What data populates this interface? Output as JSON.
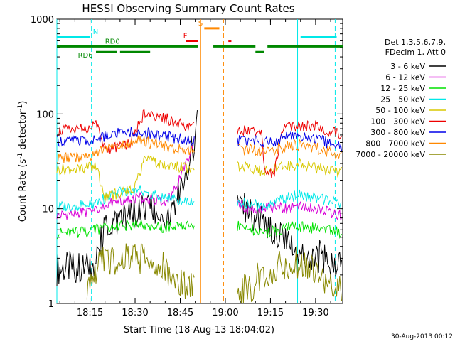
{
  "chart_data": {
    "type": "line",
    "title": "HESSI Observing Summary Count Rates",
    "xlabel": "Start Time (18-Aug-13 18:04:02)",
    "ylabel": "Count Rate (s",
    "ylabel_sup1": "-1",
    "ylabel_mid": " detector",
    "ylabel_sup2": "-1",
    "ylabel_end": ")",
    "yscale": "log",
    "ylim": [
      1,
      1000
    ],
    "xlim": [
      "18:04",
      "19:39"
    ],
    "x_ticks": [
      "18:15",
      "18:30",
      "18:45",
      "19:00",
      "19:15",
      "19:30"
    ],
    "y_ticks": [
      "1",
      "10",
      "100",
      "1000"
    ],
    "footer": "30-Aug-2013 00:12",
    "legend_header": [
      "Det 1,3,5,6,7,9,",
      "FDecim 1, Att 0"
    ],
    "series": [
      {
        "name": "3 - 6 keV",
        "color": "#000000",
        "points": [
          [
            "18:04",
            2.3
          ],
          [
            "18:10",
            2.4
          ],
          [
            "18:14",
            2.3
          ],
          [
            "18:17",
            2.6
          ],
          [
            "18:20",
            6.5
          ],
          [
            "18:25",
            7.5
          ],
          [
            "18:30",
            8.5
          ],
          [
            "18:35",
            10
          ],
          [
            "18:40",
            8
          ],
          [
            "18:44",
            14
          ],
          [
            "18:47",
            25
          ],
          [
            "18:50",
            55
          ],
          [
            "18:51",
            130
          ],
          [
            "18:56",
            null
          ],
          [
            "19:04",
            14
          ],
          [
            "19:07",
            10
          ],
          [
            "19:10",
            8
          ],
          [
            "19:15",
            6.5
          ],
          [
            "19:20",
            5.2
          ],
          [
            "19:24",
            3.4
          ],
          [
            "19:30",
            3.2
          ],
          [
            "19:36",
            2.7
          ],
          [
            "19:39",
            2.5
          ]
        ]
      },
      {
        "name": "6 - 12 keV",
        "color": "#d800d8",
        "points": [
          [
            "18:04",
            8.5
          ],
          [
            "18:10",
            9
          ],
          [
            "18:14",
            9.3
          ],
          [
            "18:17",
            9.5
          ],
          [
            "18:20",
            11
          ],
          [
            "18:25",
            12
          ],
          [
            "18:30",
            13
          ],
          [
            "18:35",
            12.5
          ],
          [
            "18:40",
            12
          ],
          [
            "18:44",
            18
          ],
          [
            "18:47",
            30
          ],
          [
            "18:50",
            55
          ],
          [
            "18:56",
            null
          ],
          [
            "19:04",
            12
          ],
          [
            "19:07",
            10
          ],
          [
            "19:12",
            9.5
          ],
          [
            "19:16",
            10.5
          ],
          [
            "19:20",
            10
          ],
          [
            "19:25",
            11
          ],
          [
            "19:30",
            10
          ],
          [
            "19:36",
            9
          ],
          [
            "19:39",
            8.5
          ]
        ]
      },
      {
        "name": "12 - 25 keV",
        "color": "#00e000",
        "points": [
          [
            "18:04",
            5.5
          ],
          [
            "18:10",
            5.6
          ],
          [
            "18:14",
            5.7
          ],
          [
            "18:17",
            6
          ],
          [
            "18:20",
            6.5
          ],
          [
            "18:25",
            6.6
          ],
          [
            "18:30",
            6.8
          ],
          [
            "18:35",
            6.5
          ],
          [
            "18:40",
            6.4
          ],
          [
            "18:44",
            6.6
          ],
          [
            "18:50",
            6.8
          ],
          [
            "18:56",
            null
          ],
          [
            "19:04",
            6.5
          ],
          [
            "19:08",
            6.2
          ],
          [
            "19:12",
            5.5
          ],
          [
            "19:16",
            5.8
          ],
          [
            "19:20",
            6.2
          ],
          [
            "19:25",
            6.5
          ],
          [
            "19:30",
            6.2
          ],
          [
            "19:36",
            5.8
          ],
          [
            "19:39",
            5.5
          ]
        ]
      },
      {
        "name": "25 - 50 keV",
        "color": "#00e8e8",
        "points": [
          [
            "18:04",
            10.5
          ],
          [
            "18:10",
            10.8
          ],
          [
            "18:14",
            11
          ],
          [
            "18:17",
            11.5
          ],
          [
            "18:20",
            13
          ],
          [
            "18:25",
            15
          ],
          [
            "18:30",
            16
          ],
          [
            "18:35",
            14.5
          ],
          [
            "18:40",
            13
          ],
          [
            "18:44",
            12.5
          ],
          [
            "18:50",
            12
          ],
          [
            "18:56",
            null
          ],
          [
            "19:04",
            12
          ],
          [
            "19:08",
            11.5
          ],
          [
            "19:12",
            10.5
          ],
          [
            "19:16",
            12
          ],
          [
            "19:20",
            13
          ],
          [
            "19:25",
            14
          ],
          [
            "19:30",
            13
          ],
          [
            "19:36",
            12
          ],
          [
            "19:39",
            11
          ]
        ]
      },
      {
        "name": "50 - 100 keV",
        "color": "#d8c800",
        "points": [
          [
            "18:04",
            26
          ],
          [
            "18:10",
            26.5
          ],
          [
            "18:14",
            27
          ],
          [
            "18:17",
            27.5
          ],
          [
            "18:20",
            13
          ],
          [
            "18:25",
            15
          ],
          [
            "18:30",
            16.5
          ],
          [
            "18:33",
            35
          ],
          [
            "18:38",
            30
          ],
          [
            "18:42",
            28
          ],
          [
            "18:46",
            27
          ],
          [
            "18:50",
            27
          ],
          [
            "18:56",
            null
          ],
          [
            "19:04",
            28
          ],
          [
            "19:08",
            27
          ],
          [
            "19:12",
            25
          ],
          [
            "19:16",
            26
          ],
          [
            "19:20",
            28
          ],
          [
            "19:25",
            30
          ],
          [
            "19:30",
            27
          ],
          [
            "19:36",
            25
          ],
          [
            "19:39",
            24
          ]
        ]
      },
      {
        "name": "100 - 300 keV",
        "color": "#ee0000",
        "points": [
          [
            "18:04",
            66
          ],
          [
            "18:10",
            68
          ],
          [
            "18:14",
            72
          ],
          [
            "18:17",
            78
          ],
          [
            "18:20",
            42
          ],
          [
            "18:25",
            46
          ],
          [
            "18:28",
            48
          ],
          [
            "18:33",
            100
          ],
          [
            "18:38",
            95
          ],
          [
            "18:42",
            85
          ],
          [
            "18:46",
            78
          ],
          [
            "18:50",
            72
          ],
          [
            "18:56",
            null
          ],
          [
            "19:04",
            68
          ],
          [
            "19:08",
            67
          ],
          [
            "19:12",
            64
          ],
          [
            "19:13",
            25
          ],
          [
            "19:16",
            22
          ],
          [
            "19:19",
            70
          ],
          [
            "19:25",
            76
          ],
          [
            "19:30",
            75
          ],
          [
            "19:36",
            64
          ],
          [
            "19:39",
            60
          ]
        ]
      },
      {
        "name": "300 - 800 keV",
        "color": "#0000e8",
        "points": [
          [
            "18:04",
            52
          ],
          [
            "18:10",
            52
          ],
          [
            "18:14",
            53
          ],
          [
            "18:17",
            55
          ],
          [
            "18:20",
            58
          ],
          [
            "18:25",
            63
          ],
          [
            "18:30",
            65
          ],
          [
            "18:35",
            62
          ],
          [
            "18:40",
            58
          ],
          [
            "18:44",
            55
          ],
          [
            "18:50",
            52
          ],
          [
            "18:56",
            null
          ],
          [
            "19:04",
            52
          ],
          [
            "19:08",
            53
          ],
          [
            "19:12",
            50
          ],
          [
            "19:16",
            52
          ],
          [
            "19:20",
            56
          ],
          [
            "19:25",
            58
          ],
          [
            "19:30",
            55
          ],
          [
            "19:36",
            47
          ],
          [
            "19:39",
            43
          ]
        ]
      },
      {
        "name": "800 - 7000 keV",
        "color": "#ff8800",
        "points": [
          [
            "18:04",
            34
          ],
          [
            "18:10",
            35
          ],
          [
            "18:14",
            36
          ],
          [
            "18:17",
            38
          ],
          [
            "18:20",
            44
          ],
          [
            "18:25",
            48
          ],
          [
            "18:30",
            52
          ],
          [
            "18:35",
            50
          ],
          [
            "18:40",
            46
          ],
          [
            "18:44",
            43
          ],
          [
            "18:50",
            40
          ],
          [
            "18:56",
            null
          ],
          [
            "19:04",
            42
          ],
          [
            "19:08",
            42
          ],
          [
            "19:12",
            40
          ],
          [
            "19:16",
            42
          ],
          [
            "19:20",
            45
          ],
          [
            "19:25",
            47
          ],
          [
            "19:30",
            44
          ],
          [
            "19:36",
            38
          ],
          [
            "19:39",
            36
          ]
        ]
      },
      {
        "name": "7000 - 20000 keV",
        "color": "#888800",
        "points": [
          [
            "18:04",
            null
          ],
          [
            "18:14",
            1.6
          ],
          [
            "18:20",
            3
          ],
          [
            "18:25",
            2.8
          ],
          [
            "18:30",
            3
          ],
          [
            "18:35",
            2.7
          ],
          [
            "18:40",
            2.5
          ],
          [
            "18:44",
            1.8
          ],
          [
            "18:47",
            1.5
          ],
          [
            "18:50",
            1.3
          ],
          [
            "18:56",
            null
          ],
          [
            "19:04",
            1.2
          ],
          [
            "19:08",
            1.5
          ],
          [
            "19:12",
            2
          ],
          [
            "19:16",
            2.4
          ],
          [
            "19:20",
            2.5
          ],
          [
            "19:25",
            2.8
          ],
          [
            "19:30",
            2.3
          ],
          [
            "19:36",
            1.6
          ],
          [
            "19:39",
            1.4
          ]
        ]
      }
    ],
    "state_bars": [
      {
        "label": "N",
        "color": "#00e8e8",
        "level": 650,
        "segments": [
          [
            "18:04",
            "18:15"
          ],
          [
            "19:25",
            "19:37"
          ]
        ],
        "label_at": "18:16"
      },
      {
        "label": "S",
        "color": "#ff8800",
        "level": 800,
        "segments": [
          [
            "18:53",
            "18:58"
          ]
        ],
        "label_at": "18:51"
      },
      {
        "label": "F",
        "color": "#ee0000",
        "level": 590,
        "segments": [
          [
            "18:47",
            "18:51"
          ],
          [
            "19:01",
            "19:02"
          ]
        ],
        "label_at": "18:46"
      },
      {
        "label": "RD0",
        "color": "#008800",
        "level": 515,
        "segments": [
          [
            "18:04",
            "18:51"
          ],
          [
            "18:56",
            "19:10"
          ],
          [
            "19:14",
            "19:39"
          ]
        ],
        "label_at": "18:20"
      },
      {
        "label": "RD6",
        "color": "#008800",
        "level": 450,
        "segments": [
          [
            "18:17",
            "18:24"
          ],
          [
            "18:25",
            "18:35"
          ],
          [
            "19:10",
            "19:13"
          ]
        ],
        "label_at": "18:11"
      }
    ],
    "vlines": [
      {
        "at": "18:04",
        "color": "#00e8e8",
        "style": "solid"
      },
      {
        "at": "18:15.5",
        "color": "#00e8e8",
        "style": "dashed"
      },
      {
        "at": "19:24",
        "color": "#00e8e8",
        "style": "solid"
      },
      {
        "at": "19:36.5",
        "color": "#00e8e8",
        "style": "dashed"
      },
      {
        "at": "18:51.8",
        "color": "#ff8800",
        "style": "solid"
      },
      {
        "at": "18:59.4",
        "color": "#ff8800",
        "style": "dashed"
      }
    ]
  }
}
